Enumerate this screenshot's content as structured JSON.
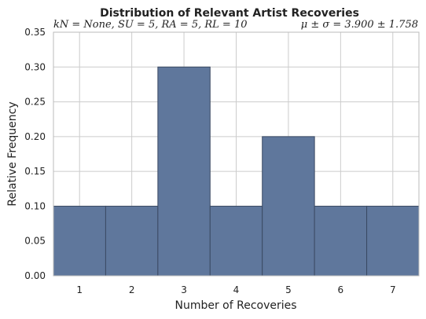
{
  "chart_data": {
    "type": "bar",
    "title": "Distribution of Relevant Artist Recoveries",
    "subtitle_left": "kN = None, SU = 5, RA = 5, RL = 10",
    "subtitle_right": "μ ± σ = 3.900 ± 1.758",
    "xlabel": "Number of Recoveries",
    "ylabel": "Relative Frequency",
    "categories": [
      "1",
      "2",
      "3",
      "4",
      "5",
      "6",
      "7"
    ],
    "values": [
      0.1,
      0.1,
      0.3,
      0.1,
      0.2,
      0.1,
      0.1
    ],
    "ylim": [
      0,
      0.35
    ],
    "yticks": [
      "0.00",
      "0.05",
      "0.10",
      "0.15",
      "0.20",
      "0.25",
      "0.30",
      "0.35"
    ],
    "grid": true,
    "legend": "none",
    "colors": {
      "bar": "#5f779c",
      "bar_edge": "#3b4a63",
      "grid": "#cccccc",
      "spine": "#bbbbbb"
    }
  }
}
